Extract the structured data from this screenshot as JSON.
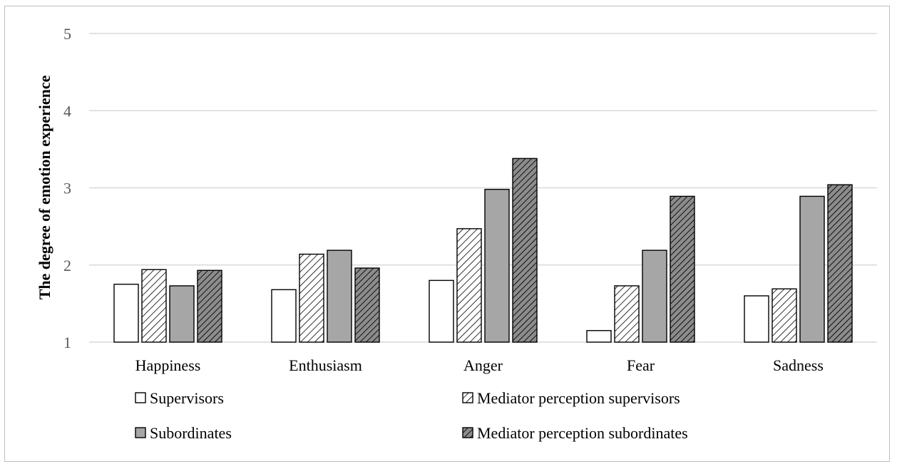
{
  "chart_data": {
    "type": "bar",
    "title": "",
    "xlabel": "",
    "ylabel": "The degree of emotion experience",
    "ylim": [
      1,
      5
    ],
    "yticks": [
      "1",
      "2",
      "3",
      "4",
      "5"
    ],
    "grid": true,
    "legend_position": "bottom",
    "categories": [
      "Happiness",
      "Enthusiasm",
      "Anger",
      "Fear",
      "Sadness"
    ],
    "series": [
      {
        "name": "Supervisors",
        "fill": "#ffffff",
        "pattern": "none",
        "values": [
          1.75,
          1.68,
          1.8,
          1.15,
          1.6
        ]
      },
      {
        "name": "Mediator perception supervisors",
        "fill": "#ffffff",
        "pattern": "hatch-light",
        "values": [
          1.94,
          2.14,
          2.47,
          1.73,
          1.69
        ]
      },
      {
        "name": "Subordinates",
        "fill": "#a6a6a6",
        "pattern": "none",
        "values": [
          1.73,
          2.19,
          2.98,
          2.19,
          2.89
        ]
      },
      {
        "name": "Mediator perception subordinates",
        "fill": "#8c8c8c",
        "pattern": "hatch-dark",
        "values": [
          1.93,
          1.96,
          3.38,
          2.89,
          3.04
        ]
      }
    ]
  }
}
